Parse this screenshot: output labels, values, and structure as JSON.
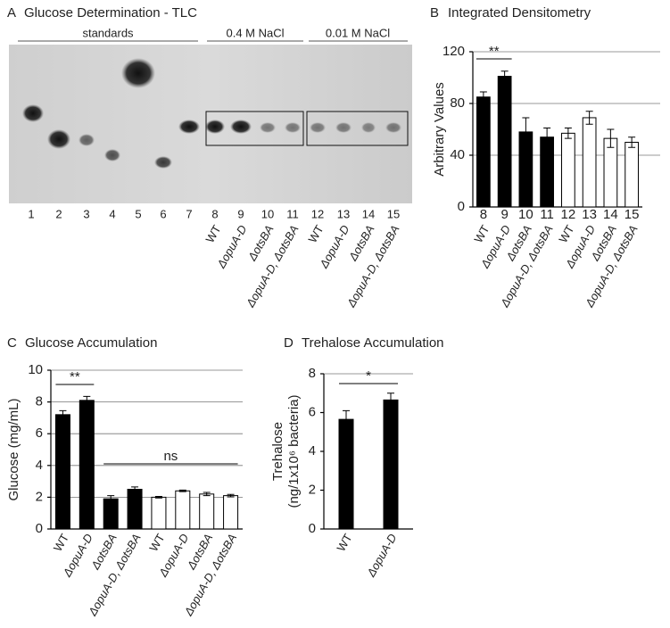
{
  "tlc": {
    "panel": "A",
    "title": "Glucose Determination - TLC",
    "groups": [
      "standards",
      "0.4 M NaCl",
      "0.01 M NaCl"
    ],
    "lanes": [
      1,
      2,
      3,
      4,
      5,
      6,
      7,
      8,
      9,
      10,
      11,
      12,
      13,
      14,
      15
    ],
    "genotypes": [
      "WT",
      "ΔopuA-D",
      "ΔotsBA",
      "ΔopuA-D, ΔotsBA",
      "WT",
      "ΔopuA-D",
      "ΔotsBA",
      "ΔopuA-D, ΔotsBA"
    ]
  },
  "chart_data": [
    {
      "type": "bar",
      "panel": "B",
      "title": "Integrated Densitometry",
      "ylabel": "Arbitrary Values",
      "categories": [
        "8",
        "9",
        "10",
        "11",
        "12",
        "13",
        "14",
        "15"
      ],
      "genotypes": [
        "WT",
        "ΔopuA-D",
        "ΔotsBA",
        "ΔopuA-D, ΔotsBA",
        "WT",
        "ΔopuA-D",
        "ΔotsBA",
        "ΔopuA-D, ΔotsBA"
      ],
      "values": [
        85,
        101,
        58,
        54,
        57,
        69,
        53,
        50
      ],
      "errors": [
        4,
        4,
        11,
        7,
        4,
        5,
        7,
        4
      ],
      "colors": [
        "#000000",
        "#000000",
        "#000000",
        "#000000",
        "#ffffff",
        "#ffffff",
        "#ffffff",
        "#ffffff"
      ],
      "ylim": [
        0,
        120
      ],
      "yticks": [
        0,
        40,
        80,
        120
      ],
      "grid": true,
      "annotations": [
        "**"
      ]
    },
    {
      "type": "bar",
      "panel": "C",
      "title": "Glucose Accumulation",
      "ylabel": "Glucose (mg/mL)",
      "categories": [
        "WT",
        "ΔopuA-D",
        "ΔotsBA",
        "ΔopuA-D, ΔotsBA",
        "WT",
        "ΔopuA-D",
        "ΔotsBA",
        "ΔopuA-D, ΔotsBA"
      ],
      "values": [
        7.2,
        8.1,
        1.9,
        2.5,
        2.0,
        2.4,
        2.2,
        2.1
      ],
      "errors": [
        0.25,
        0.25,
        0.2,
        0.15,
        0.05,
        0.05,
        0.1,
        0.08
      ],
      "colors": [
        "#000000",
        "#000000",
        "#000000",
        "#000000",
        "#ffffff",
        "#ffffff",
        "#ffffff",
        "#ffffff"
      ],
      "ylim": [
        0,
        10
      ],
      "yticks": [
        0,
        2,
        4,
        6,
        8,
        10
      ],
      "grid": true,
      "annotations": [
        "**",
        "ns"
      ]
    },
    {
      "type": "bar",
      "panel": "D",
      "title": "Trehalose Accumulation",
      "ylabel": "Trehalose",
      "ylabel2": "(ng/1x10⁶ bacteria)",
      "categories": [
        "WT",
        "ΔopuA-D"
      ],
      "values": [
        5.65,
        6.65
      ],
      "errors": [
        0.45,
        0.35
      ],
      "colors": [
        "#000000",
        "#000000"
      ],
      "ylim": [
        0,
        8
      ],
      "yticks": [
        0,
        2,
        4,
        6,
        8
      ],
      "grid": false,
      "annotations": [
        "*"
      ]
    }
  ]
}
